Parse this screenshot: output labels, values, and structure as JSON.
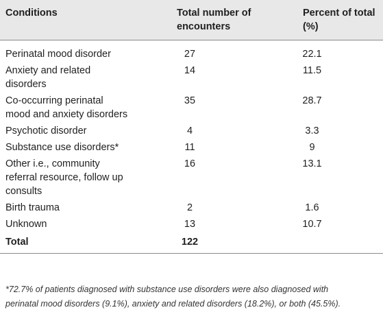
{
  "table": {
    "headers": {
      "conditions": "Conditions",
      "total_line1": "Total number of",
      "total_line2": "encounters",
      "percent_line1": "Percent of total",
      "percent_line2": "(%)"
    },
    "rows": [
      {
        "condition": [
          "Perinatal mood disorder"
        ],
        "count": "27",
        "percent": "22.1"
      },
      {
        "condition": [
          "Anxiety and related",
          "disorders"
        ],
        "count": "14",
        "percent": "11.5"
      },
      {
        "condition": [
          "Co-occurring perinatal",
          "mood and anxiety disorders"
        ],
        "count": "35",
        "percent": "28.7"
      },
      {
        "condition": [
          "Psychotic disorder"
        ],
        "count": "4",
        "percent": "3.3"
      },
      {
        "condition": [
          "Substance use disorders*"
        ],
        "count": "11",
        "percent": "9"
      },
      {
        "condition": [
          "Other i.e., community",
          "referral resource, follow up",
          "consults"
        ],
        "count": "16",
        "percent": "13.1"
      },
      {
        "condition": [
          "Birth trauma"
        ],
        "count": "2",
        "percent": "1.6"
      },
      {
        "condition": [
          "Unknown"
        ],
        "count": "13",
        "percent": "10.7"
      }
    ],
    "total": {
      "label": "Total",
      "count": "122",
      "percent": ""
    }
  },
  "footnote": {
    "line1": "*72.7% of patients diagnosed with substance use disorders were also diagnosed with",
    "line2": "perinatal mood disorders (9.1%), anxiety and related disorders (18.2%), or both (45.5%)."
  }
}
